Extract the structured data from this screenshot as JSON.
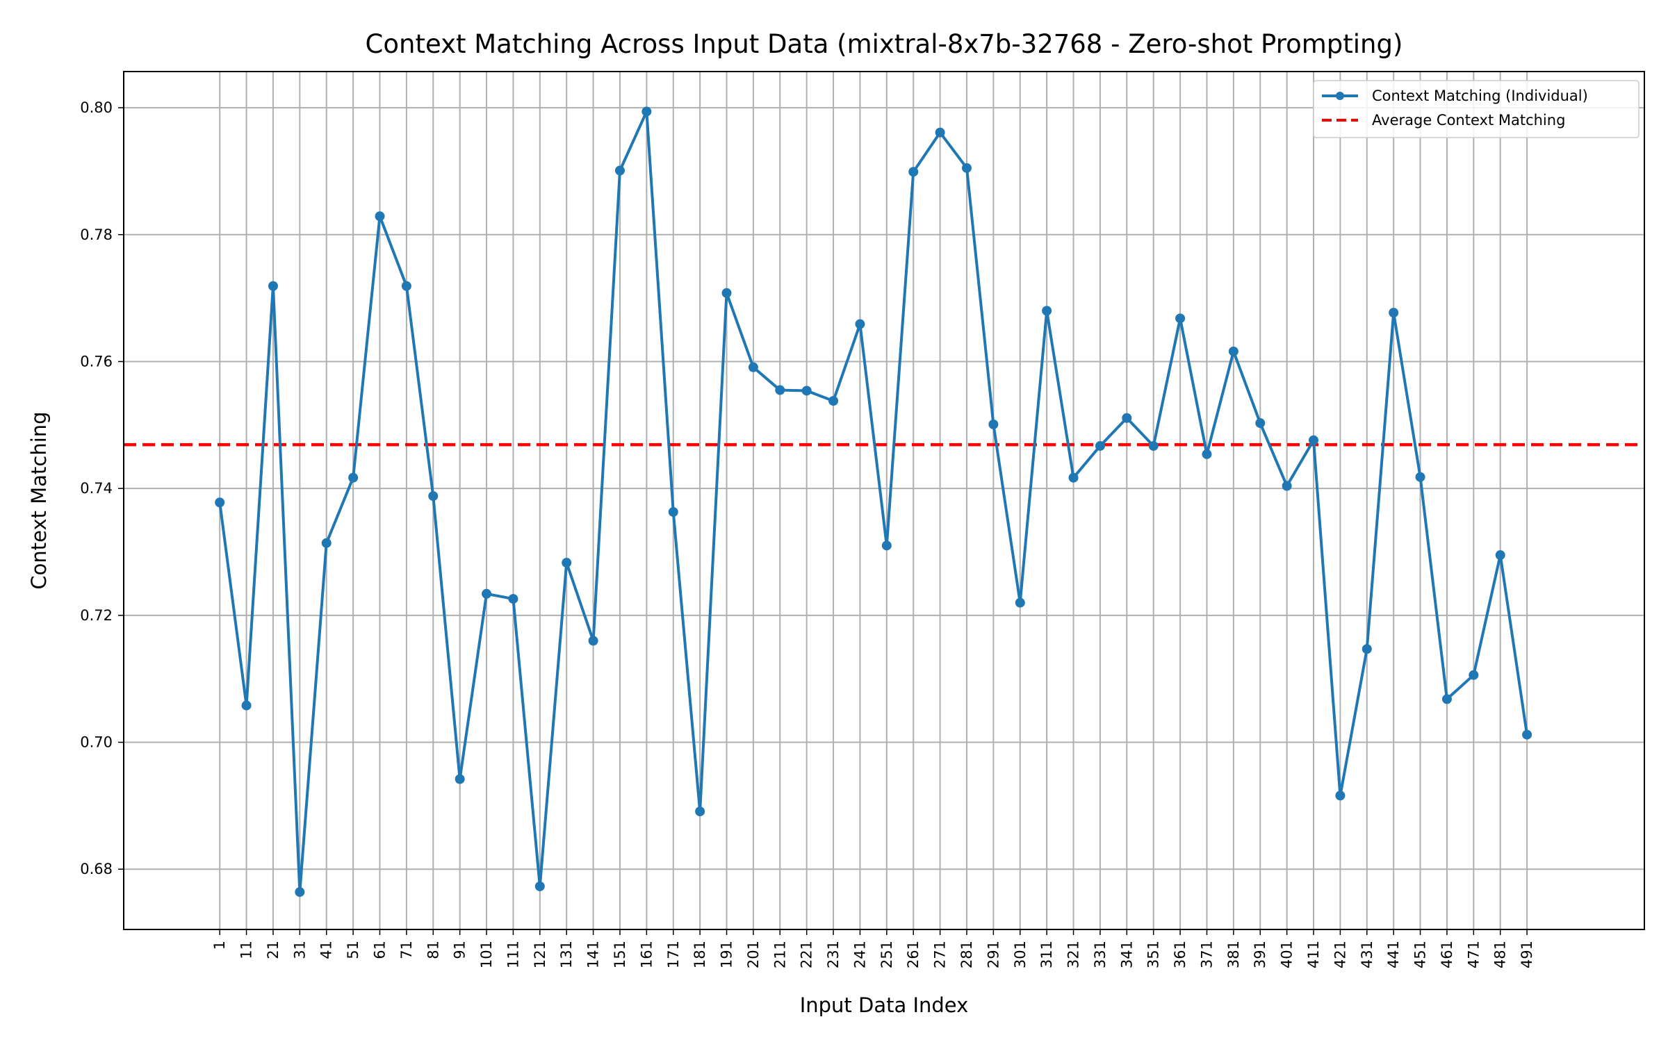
{
  "chart_data": {
    "type": "line",
    "title": "Context Matching Across Input Data (mixtral-8x7b-32768 - Zero-shot Prompting)",
    "xlabel": "Input Data Index",
    "ylabel": "Context Matching",
    "x": [
      1,
      11,
      21,
      31,
      41,
      51,
      61,
      71,
      81,
      91,
      101,
      111,
      121,
      131,
      141,
      151,
      161,
      171,
      181,
      191,
      201,
      211,
      221,
      231,
      241,
      251,
      261,
      271,
      281,
      291,
      301,
      311,
      321,
      331,
      341,
      351,
      361,
      371,
      381,
      391,
      401,
      411,
      421,
      431,
      441,
      451,
      461,
      471,
      481,
      491
    ],
    "xlim": [
      -35,
      535
    ],
    "ylim": [
      0.6705,
      0.8057
    ],
    "yticks": [
      0.68,
      0.7,
      0.72,
      0.74,
      0.76,
      0.78,
      0.8
    ],
    "grid": true,
    "legend_position": "upper right",
    "series": [
      {
        "name": "Context Matching (Individual)",
        "color": "#1f77b4",
        "style": "solid-with-markers",
        "values": [
          0.7378,
          0.7058,
          0.7719,
          0.6764,
          0.7314,
          0.7417,
          0.7829,
          0.7719,
          0.7388,
          0.6942,
          0.7234,
          0.7226,
          0.6773,
          0.7283,
          0.716,
          0.7901,
          0.7994,
          0.7363,
          0.6891,
          0.7708,
          0.7591,
          0.7555,
          0.7554,
          0.7538,
          0.7659,
          0.731,
          0.7899,
          0.7961,
          0.7905,
          0.7501,
          0.722,
          0.768,
          0.7417,
          0.7467,
          0.7511,
          0.7467,
          0.7668,
          0.7454,
          0.7616,
          0.7503,
          0.7404,
          0.7476,
          0.6916,
          0.7147,
          0.7677,
          0.7418,
          0.7068,
          0.7106,
          0.7295,
          0.7012
        ]
      },
      {
        "name": "Average Context Matching",
        "color": "#ff0000",
        "style": "dashed",
        "value": 0.7469
      }
    ]
  }
}
